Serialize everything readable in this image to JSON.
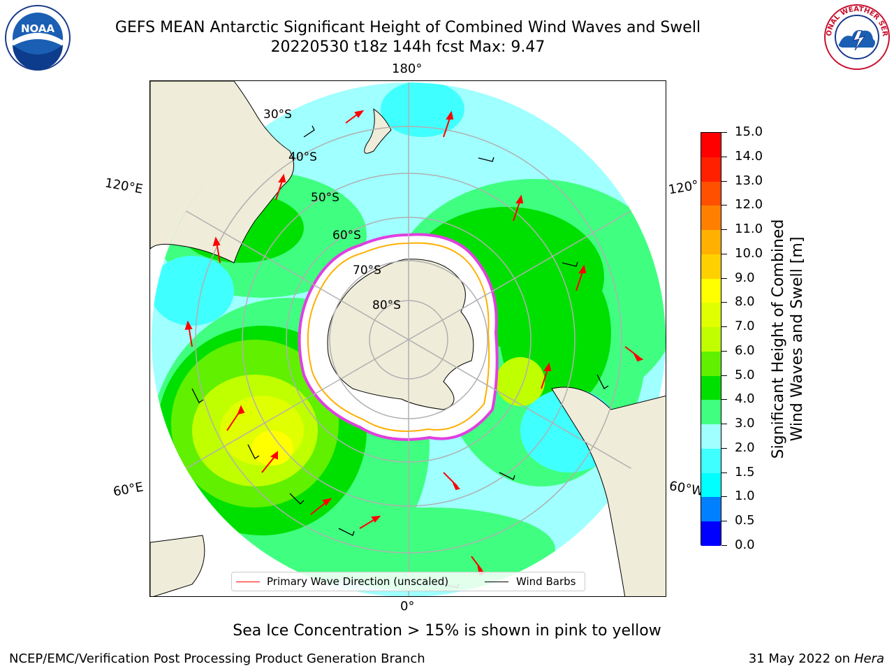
{
  "title": {
    "line1": "GEFS MEAN Antarctic Significant Height of Combined Wind Waves and Swell",
    "line2": "20220530 t18z 144h fcst   Max: 9.47"
  },
  "logos": {
    "left": {
      "icon": "noaa-logo",
      "text": "NOAA"
    },
    "right": {
      "icon": "national-weather-service-logo",
      "text": "NATIONAL WEATHER SERVICE"
    }
  },
  "map": {
    "projection": "south-polar-stereographic",
    "longitude_labels": {
      "top": "180°",
      "bottom": "0°",
      "upper_left": "120°E",
      "lower_left": "60°E",
      "upper_right": "120°",
      "lower_right": "60°W"
    },
    "latitude_labels": [
      "30°S",
      "40°S",
      "50°S",
      "60°S",
      "70°S",
      "80°S"
    ],
    "colors": {
      "land": "#efecd9",
      "ice": "#ffffff",
      "ice_edge": "#e040e0",
      "grid": "#b0b0b0",
      "arrow": "#ff0000",
      "barb": "#000000"
    }
  },
  "colorbar": {
    "label_line1": "Significant Height of Combined",
    "label_line2": "Wind Waves and Swell [m]",
    "ticks": [
      "0.0",
      "0.5",
      "1.0",
      "1.5",
      "2.0",
      "3.0",
      "4.0",
      "5.0",
      "6.0",
      "7.0",
      "8.0",
      "9.0",
      "10.0",
      "11.0",
      "12.0",
      "13.0",
      "14.0",
      "15.0"
    ],
    "colors": [
      "#0000ff",
      "#0080ff",
      "#00ffff",
      "#40ffff",
      "#a0ffff",
      "#40ff80",
      "#00e000",
      "#60f000",
      "#c0ff00",
      "#e0ff00",
      "#ffff00",
      "#ffd000",
      "#ffb000",
      "#ff8000",
      "#ff5000",
      "#ff2000",
      "#ff0000"
    ]
  },
  "legend": {
    "primary_wave": {
      "label": "Primary Wave Direction (unscaled)",
      "color": "#ff0000"
    },
    "wind_barbs": {
      "label": "Wind Barbs",
      "color": "#000000"
    }
  },
  "note": "Sea Ice Concentration > 15% is shown in pink to yellow",
  "footer": {
    "left": "NCEP/EMC/Verification Post Processing Product Generation Branch",
    "right_date": "31 May 2022 on",
    "right_machine": "Hera"
  }
}
